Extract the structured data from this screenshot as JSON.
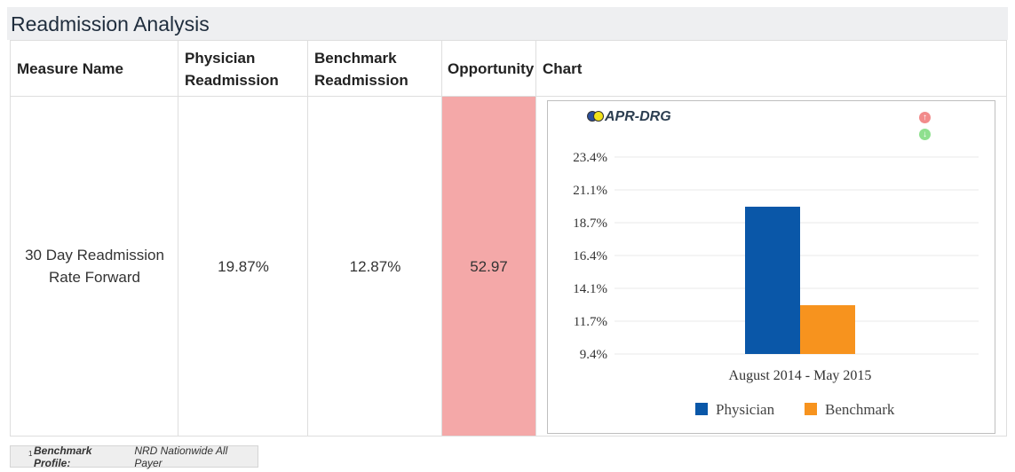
{
  "page": {
    "title": "Readmission Analysis"
  },
  "table": {
    "headers": {
      "measure": "Measure Name",
      "physician_line1": "Physician",
      "physician_line2": "Readmission",
      "benchmark_line1": "Benchmark",
      "benchmark_line2": "Readmission",
      "opportunity": "Opportunity",
      "chart": "Chart"
    },
    "row": {
      "measure_line1": "30 Day Readmission",
      "measure_line2": "Rate Forward",
      "physician": "19.87%",
      "benchmark": "12.87%",
      "opportunity": "52.97"
    },
    "opportunity_color": "#f4a8a8"
  },
  "chart_controls": {
    "up_icon": "arrow-up-icon",
    "down_icon": "arrow-down-icon"
  },
  "chart_data": {
    "type": "bar",
    "title": "APR-DRG",
    "categories": [
      "August 2014 - May 2015"
    ],
    "series": [
      {
        "name": "Physician",
        "values": [
          19.87
        ],
        "color": "#0a57a8"
      },
      {
        "name": "Benchmark",
        "values": [
          12.87
        ],
        "color": "#f7931e"
      }
    ],
    "yticks": [
      "23.4%",
      "21.1%",
      "18.7%",
      "16.4%",
      "14.1%",
      "11.7%",
      "9.4%"
    ],
    "ylim": [
      9.4,
      23.4
    ],
    "grid": true,
    "legend": "bottom"
  },
  "footnote": {
    "marker": "1",
    "label": "Benchmark Profile:",
    "value": "NRD Nationwide All Payer"
  }
}
